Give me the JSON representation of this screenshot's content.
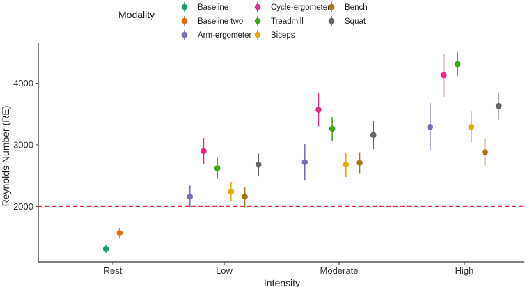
{
  "chart_data": {
    "type": "scatter",
    "subtype": "point-range",
    "xlabel": "Intensity",
    "ylabel": "Reynolds Number (RE)",
    "categories": [
      "Rest",
      "Low",
      "Moderate",
      "High"
    ],
    "yticks": [
      2000,
      3000,
      4000
    ],
    "ylim": [
      1100,
      4650
    ],
    "reference_line": {
      "y": 2000,
      "style": "dashed",
      "color": "#e8323e"
    },
    "legend": {
      "title": "Modality",
      "placement": "top"
    },
    "series": [
      {
        "name": "Baseline",
        "color": "#1b9e77",
        "points": [
          {
            "category": "Rest",
            "y": 1310,
            "low": 1250,
            "high": 1370
          }
        ]
      },
      {
        "name": "Baseline two",
        "color": "#e66a12",
        "points": [
          {
            "category": "Rest",
            "y": 1570,
            "low": 1490,
            "high": 1650
          }
        ]
      },
      {
        "name": "Arm-ergometer",
        "color": "#7570b3",
        "points": [
          {
            "category": "Low",
            "y": 2160,
            "low": 1990,
            "high": 2340
          },
          {
            "category": "Moderate",
            "y": 2720,
            "low": 2420,
            "high": 3010
          },
          {
            "category": "High",
            "y": 3290,
            "low": 2910,
            "high": 3680
          }
        ]
      },
      {
        "name": "Cycle-ergometer",
        "color": "#e7298a",
        "points": [
          {
            "category": "Low",
            "y": 2900,
            "low": 2690,
            "high": 3110
          },
          {
            "category": "Moderate",
            "y": 3570,
            "low": 3300,
            "high": 3840
          },
          {
            "category": "High",
            "y": 4130,
            "low": 3780,
            "high": 4470
          }
        ]
      },
      {
        "name": "Treadmill",
        "color": "#42a61d",
        "points": [
          {
            "category": "Low",
            "y": 2620,
            "low": 2450,
            "high": 2790
          },
          {
            "category": "Moderate",
            "y": 3260,
            "low": 3060,
            "high": 3450
          },
          {
            "category": "High",
            "y": 4310,
            "low": 4120,
            "high": 4500
          }
        ]
      },
      {
        "name": "Biceps",
        "color": "#e6ab02",
        "points": [
          {
            "category": "Low",
            "y": 2240,
            "low": 2080,
            "high": 2400
          },
          {
            "category": "Moderate",
            "y": 2680,
            "low": 2480,
            "high": 2870
          },
          {
            "category": "High",
            "y": 3290,
            "low": 3040,
            "high": 3540
          }
        ]
      },
      {
        "name": "Bench",
        "color": "#a6761d",
        "points": [
          {
            "category": "Low",
            "y": 2160,
            "low": 1990,
            "high": 2320
          },
          {
            "category": "Moderate",
            "y": 2710,
            "low": 2530,
            "high": 2880
          },
          {
            "category": "High",
            "y": 2880,
            "low": 2650,
            "high": 3100
          }
        ]
      },
      {
        "name": "Squat",
        "color": "#666666",
        "points": [
          {
            "category": "Low",
            "y": 2680,
            "low": 2490,
            "high": 2860
          },
          {
            "category": "Moderate",
            "y": 3160,
            "low": 2930,
            "high": 3390
          },
          {
            "category": "High",
            "y": 3630,
            "low": 3410,
            "high": 3850
          }
        ]
      }
    ]
  }
}
